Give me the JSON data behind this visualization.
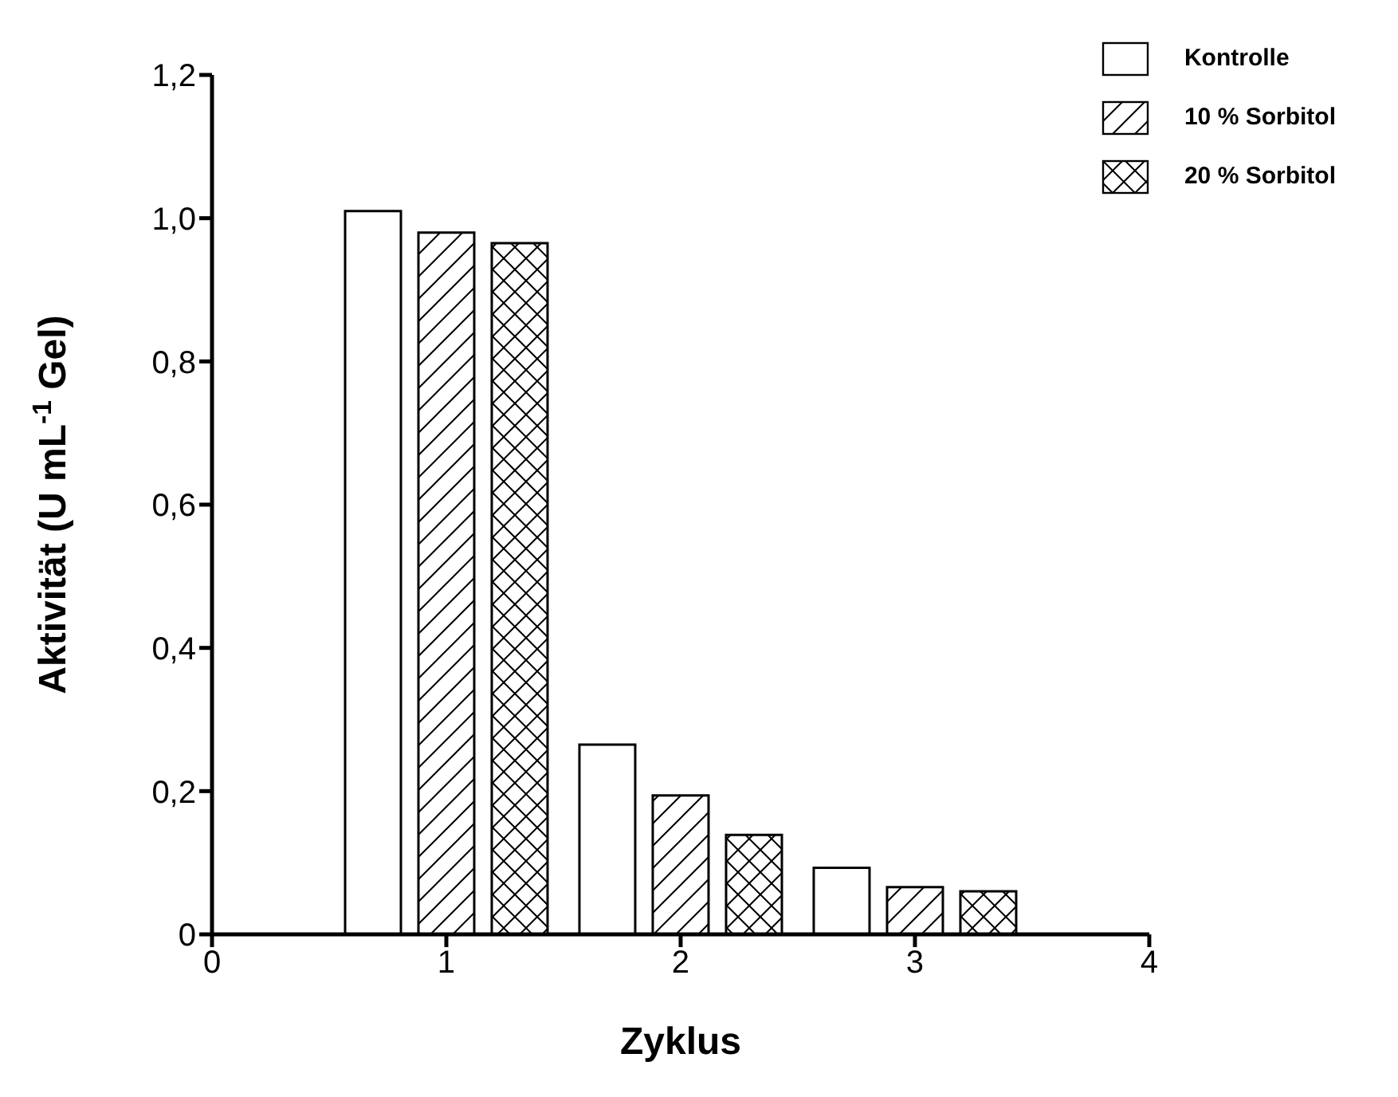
{
  "chart_data": {
    "type": "bar",
    "xlabel": "Zyklus",
    "ylabel": "Aktivität (U mL$^{-1}$ Gel)",
    "x": [
      1,
      2,
      3
    ],
    "series": [
      {
        "name": "Kontrolle",
        "color": "#000000",
        "values": [
          1.01,
          0.265,
          0.093
        ]
      },
      {
        "name": "10 % Sorbitol",
        "color": "#000000",
        "values": [
          0.98,
          0.194,
          0.066
        ]
      },
      {
        "name": "20 % Sorbitol",
        "color": "#000000",
        "values": [
          0.965,
          0.139,
          0.06
        ]
      }
    ],
    "xlim": [
      0,
      4
    ],
    "xticks": [
      0,
      1,
      2,
      3,
      4
    ],
    "ylim": [
      0,
      1.2
    ],
    "yticks": [
      0,
      {
        "value": 0.2,
        "label": "0,2"
      },
      {
        "value": 0.4,
        "label": "0,4"
      },
      {
        "value": 0.6,
        "label": "0,6"
      },
      {
        "value": 0.8,
        "label": "0,8"
      },
      {
        "value": 1.0,
        "label": "1,0"
      },
      {
        "value": 1.2,
        "label": "1,2"
      }
    ],
    "grid": false,
    "legend": "top right"
  }
}
